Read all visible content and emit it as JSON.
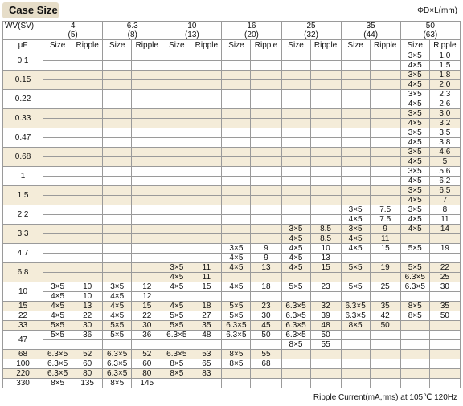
{
  "title": "Case Size",
  "dimension_note": "ΦD×L(mm)",
  "footnote": "Ripple Current(mA,rms) at 105℃ 120Hz",
  "header": {
    "wv_label": "WV(SV)",
    "cap_label": "μF",
    "voltages": [
      {
        "wv": "4",
        "sv": "(5)"
      },
      {
        "wv": "6.3",
        "sv": "(8)"
      },
      {
        "wv": "10",
        "sv": "(13)"
      },
      {
        "wv": "16",
        "sv": "(20)"
      },
      {
        "wv": "25",
        "sv": "(32)"
      },
      {
        "wv": "35",
        "sv": "(44)"
      },
      {
        "wv": "50",
        "sv": "(63)"
      }
    ],
    "size_label": "Size",
    "ripple_label": "Ripple"
  },
  "groups": [
    {
      "cap": "0.1",
      "rows": [
        [
          "",
          "",
          "",
          "",
          "",
          "",
          "",
          "",
          "",
          "",
          "",
          "",
          "3×5",
          "1.0"
        ],
        [
          "",
          "",
          "",
          "",
          "",
          "",
          "",
          "",
          "",
          "",
          "",
          "",
          "4×5",
          "1.5"
        ]
      ]
    },
    {
      "cap": "0.15",
      "rows": [
        [
          "",
          "",
          "",
          "",
          "",
          "",
          "",
          "",
          "",
          "",
          "",
          "",
          "3×5",
          "1.8"
        ],
        [
          "",
          "",
          "",
          "",
          "",
          "",
          "",
          "",
          "",
          "",
          "",
          "",
          "4×5",
          "2.0"
        ]
      ]
    },
    {
      "cap": "0.22",
      "rows": [
        [
          "",
          "",
          "",
          "",
          "",
          "",
          "",
          "",
          "",
          "",
          "",
          "",
          "3×5",
          "2.3"
        ],
        [
          "",
          "",
          "",
          "",
          "",
          "",
          "",
          "",
          "",
          "",
          "",
          "",
          "4×5",
          "2.6"
        ]
      ]
    },
    {
      "cap": "0.33",
      "rows": [
        [
          "",
          "",
          "",
          "",
          "",
          "",
          "",
          "",
          "",
          "",
          "",
          "",
          "3×5",
          "3.0"
        ],
        [
          "",
          "",
          "",
          "",
          "",
          "",
          "",
          "",
          "",
          "",
          "",
          "",
          "4×5",
          "3.2"
        ]
      ]
    },
    {
      "cap": "0.47",
      "rows": [
        [
          "",
          "",
          "",
          "",
          "",
          "",
          "",
          "",
          "",
          "",
          "",
          "",
          "3×5",
          "3.5"
        ],
        [
          "",
          "",
          "",
          "",
          "",
          "",
          "",
          "",
          "",
          "",
          "",
          "",
          "4×5",
          "3.8"
        ]
      ]
    },
    {
      "cap": "0.68",
      "rows": [
        [
          "",
          "",
          "",
          "",
          "",
          "",
          "",
          "",
          "",
          "",
          "",
          "",
          "3×5",
          "4.6"
        ],
        [
          "",
          "",
          "",
          "",
          "",
          "",
          "",
          "",
          "",
          "",
          "",
          "",
          "4×5",
          "5"
        ]
      ]
    },
    {
      "cap": "1",
      "rows": [
        [
          "",
          "",
          "",
          "",
          "",
          "",
          "",
          "",
          "",
          "",
          "",
          "",
          "3×5",
          "5.6"
        ],
        [
          "",
          "",
          "",
          "",
          "",
          "",
          "",
          "",
          "",
          "",
          "",
          "",
          "4×5",
          "6.2"
        ]
      ]
    },
    {
      "cap": "1.5",
      "rows": [
        [
          "",
          "",
          "",
          "",
          "",
          "",
          "",
          "",
          "",
          "",
          "",
          "",
          "3×5",
          "6.5"
        ],
        [
          "",
          "",
          "",
          "",
          "",
          "",
          "",
          "",
          "",
          "",
          "",
          "",
          "4×5",
          "7"
        ]
      ]
    },
    {
      "cap": "2.2",
      "rows": [
        [
          "",
          "",
          "",
          "",
          "",
          "",
          "",
          "",
          "",
          "",
          "3×5",
          "7.5",
          "3×5",
          "8"
        ],
        [
          "",
          "",
          "",
          "",
          "",
          "",
          "",
          "",
          "",
          "",
          "4×5",
          "7.5",
          "4×5",
          "11"
        ]
      ]
    },
    {
      "cap": "3.3",
      "rows": [
        [
          "",
          "",
          "",
          "",
          "",
          "",
          "",
          "",
          "3×5",
          "8.5",
          "3×5",
          "9",
          "4×5",
          "14"
        ],
        [
          "",
          "",
          "",
          "",
          "",
          "",
          "",
          "",
          "4×5",
          "8.5",
          "4×5",
          "11",
          "",
          ""
        ]
      ]
    },
    {
      "cap": "4.7",
      "rows": [
        [
          "",
          "",
          "",
          "",
          "",
          "",
          "3×5",
          "9",
          "4×5",
          "10",
          "4×5",
          "15",
          "5×5",
          "19"
        ],
        [
          "",
          "",
          "",
          "",
          "",
          "",
          "4×5",
          "9",
          "4×5",
          "13",
          "",
          "",
          "",
          ""
        ]
      ]
    },
    {
      "cap": "6.8",
      "rows": [
        [
          "",
          "",
          "",
          "",
          "3×5",
          "11",
          "4×5",
          "13",
          "4×5",
          "15",
          "5×5",
          "19",
          "5×5",
          "22"
        ],
        [
          "",
          "",
          "",
          "",
          "4×5",
          "11",
          "",
          "",
          "",
          "",
          "",
          "",
          "6.3×5",
          "25"
        ]
      ]
    },
    {
      "cap": "10",
      "rows": [
        [
          "3×5",
          "10",
          "3×5",
          "12",
          "4×5",
          "15",
          "4×5",
          "18",
          "5×5",
          "23",
          "5×5",
          "25",
          "6.3×5",
          "30"
        ],
        [
          "4×5",
          "10",
          "4×5",
          "12",
          "",
          "",
          "",
          "",
          "",
          "",
          "",
          "",
          "",
          ""
        ]
      ]
    },
    {
      "cap": "15",
      "rows": [
        [
          "4×5",
          "13",
          "4×5",
          "15",
          "4×5",
          "18",
          "5×5",
          "23",
          "6.3×5",
          "32",
          "6.3×5",
          "35",
          "8×5",
          "35"
        ]
      ]
    },
    {
      "cap": "22",
      "rows": [
        [
          "4×5",
          "22",
          "4×5",
          "22",
          "5×5",
          "27",
          "5×5",
          "30",
          "6.3×5",
          "39",
          "6.3×5",
          "42",
          "8×5",
          "50"
        ]
      ]
    },
    {
      "cap": "33",
      "rows": [
        [
          "5×5",
          "30",
          "5×5",
          "30",
          "5×5",
          "35",
          "6.3×5",
          "45",
          "6.3×5",
          "48",
          "8×5",
          "50",
          "",
          ""
        ]
      ]
    },
    {
      "cap": "47",
      "rows": [
        [
          "5×5",
          "36",
          "5×5",
          "36",
          "6.3×5",
          "48",
          "6.3×5",
          "50",
          "6.3×5",
          "50",
          "",
          "",
          "",
          ""
        ],
        [
          "",
          "",
          "",
          "",
          "",
          "",
          "",
          "",
          "8×5",
          "55",
          "",
          "",
          "",
          ""
        ]
      ]
    },
    {
      "cap": "68",
      "rows": [
        [
          "6.3×5",
          "52",
          "6.3×5",
          "52",
          "6.3×5",
          "53",
          "8×5",
          "55",
          "",
          "",
          "",
          "",
          "",
          ""
        ]
      ]
    },
    {
      "cap": "100",
      "rows": [
        [
          "6.3×5",
          "60",
          "6.3×5",
          "60",
          "8×5",
          "65",
          "8×5",
          "68",
          "",
          "",
          "",
          "",
          "",
          ""
        ]
      ]
    },
    {
      "cap": "220",
      "rows": [
        [
          "6.3×5",
          "80",
          "6.3×5",
          "80",
          "8×5",
          "83",
          "",
          "",
          "",
          "",
          "",
          "",
          "",
          ""
        ]
      ]
    },
    {
      "cap": "330",
      "rows": [
        [
          "8×5",
          "135",
          "8×5",
          "145",
          "",
          "",
          "",
          "",
          "",
          "",
          "",
          "",
          "",
          ""
        ]
      ]
    }
  ]
}
